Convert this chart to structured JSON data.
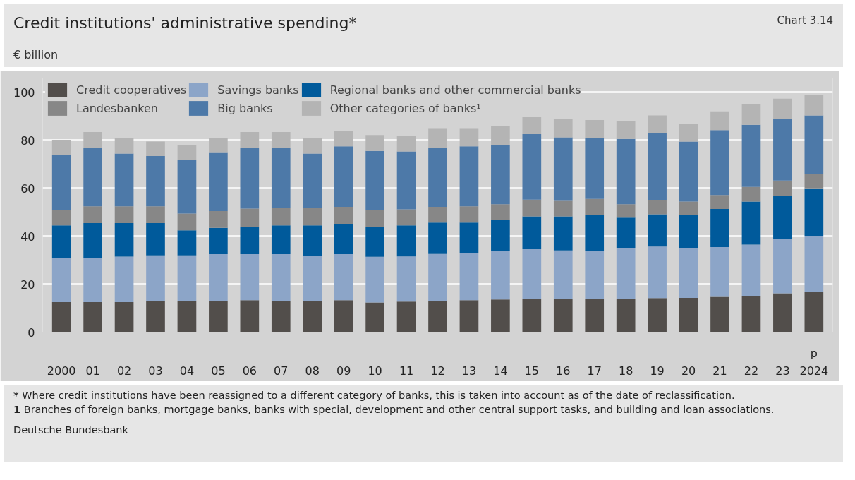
{
  "chart_data": {
    "type": "bar",
    "stacked": true,
    "title": "Credit institutions' administrative spending*",
    "subtitle": "€ billion",
    "categories": [
      "2000",
      "01",
      "02",
      "03",
      "04",
      "05",
      "06",
      "07",
      "08",
      "09",
      "10",
      "11",
      "12",
      "13",
      "14",
      "15",
      "16",
      "17",
      "18",
      "19",
      "20",
      "21",
      "22",
      "23",
      "2024"
    ],
    "series": [
      {
        "name": "Credit cooperatives",
        "color": "#524e4b",
        "values": [
          12.5,
          12.5,
          12.5,
          12.8,
          12.8,
          13,
          13.3,
          13,
          12.8,
          13.3,
          12.4,
          12.7,
          13.1,
          13.3,
          13.6,
          14,
          13.8,
          13.8,
          14,
          14.2,
          14.3,
          14.7,
          15.2,
          16.2,
          16.6
        ]
      },
      {
        "name": "Savings banks",
        "color": "#8ca5c8",
        "values": [
          18.5,
          18.5,
          19,
          19.2,
          19.2,
          19.5,
          19.2,
          19.5,
          19,
          19.2,
          19,
          18.9,
          19.5,
          19.6,
          20.1,
          20.6,
          20.3,
          20.2,
          21.1,
          21.5,
          20.8,
          20.8,
          21.3,
          22.6,
          23.4
        ]
      },
      {
        "name": "Regional banks and other commercial banks",
        "color": "#005a9b",
        "values": [
          13.5,
          14.5,
          14,
          13.5,
          10.5,
          11,
          11.5,
          12,
          12.7,
          12.5,
          12.6,
          12.9,
          13.1,
          12.8,
          13.1,
          13.7,
          14.2,
          14.8,
          12.7,
          13.5,
          13.7,
          15.9,
          18,
          18.1,
          19.7
        ]
      },
      {
        "name": "Landesbanken",
        "color": "#878787",
        "values": [
          6.5,
          7,
          7,
          7,
          7,
          7,
          7.5,
          7.3,
          7.3,
          7.3,
          6.8,
          6.7,
          6.6,
          6.8,
          6.6,
          7,
          6.5,
          6.8,
          5.6,
          5.8,
          5.7,
          5.8,
          6.1,
          6.3,
          6.3
        ]
      },
      {
        "name": "Big banks",
        "color": "#4d79a8",
        "values": [
          23,
          24.5,
          22,
          21,
          22.5,
          24.3,
          25.5,
          25.2,
          22.7,
          25.2,
          24.8,
          24.2,
          24.7,
          25,
          24.8,
          27.3,
          26.5,
          25.5,
          27.2,
          27.9,
          25,
          27.1,
          25.9,
          25.7,
          24.4
        ]
      },
      {
        "name": "Other categories of banks¹",
        "color": "#b4b4b4",
        "values": [
          6,
          6.5,
          6.5,
          6,
          6,
          6.2,
          6.5,
          6.5,
          6.5,
          6.5,
          6.6,
          6.6,
          7.8,
          7.3,
          7.6,
          7.5,
          7.5,
          7.4,
          7.5,
          7.5,
          7.5,
          7.8,
          8.7,
          8.5,
          8.5
        ]
      }
    ],
    "ylim": [
      0,
      106
    ],
    "yticks": [
      0,
      20,
      40,
      60,
      80,
      100
    ],
    "grid": "y",
    "legend": "top",
    "annotations": [
      "Chart 3.14",
      "p",
      "* Where credit institutions have been reassigned to a different category of banks, this is taken into account as of the date of reclassification.",
      "1 Branches of foreign banks, mortgage banks, banks with special, development and other central support tasks, and building and loan associations.",
      "Deutsche Bundesbank"
    ]
  }
}
